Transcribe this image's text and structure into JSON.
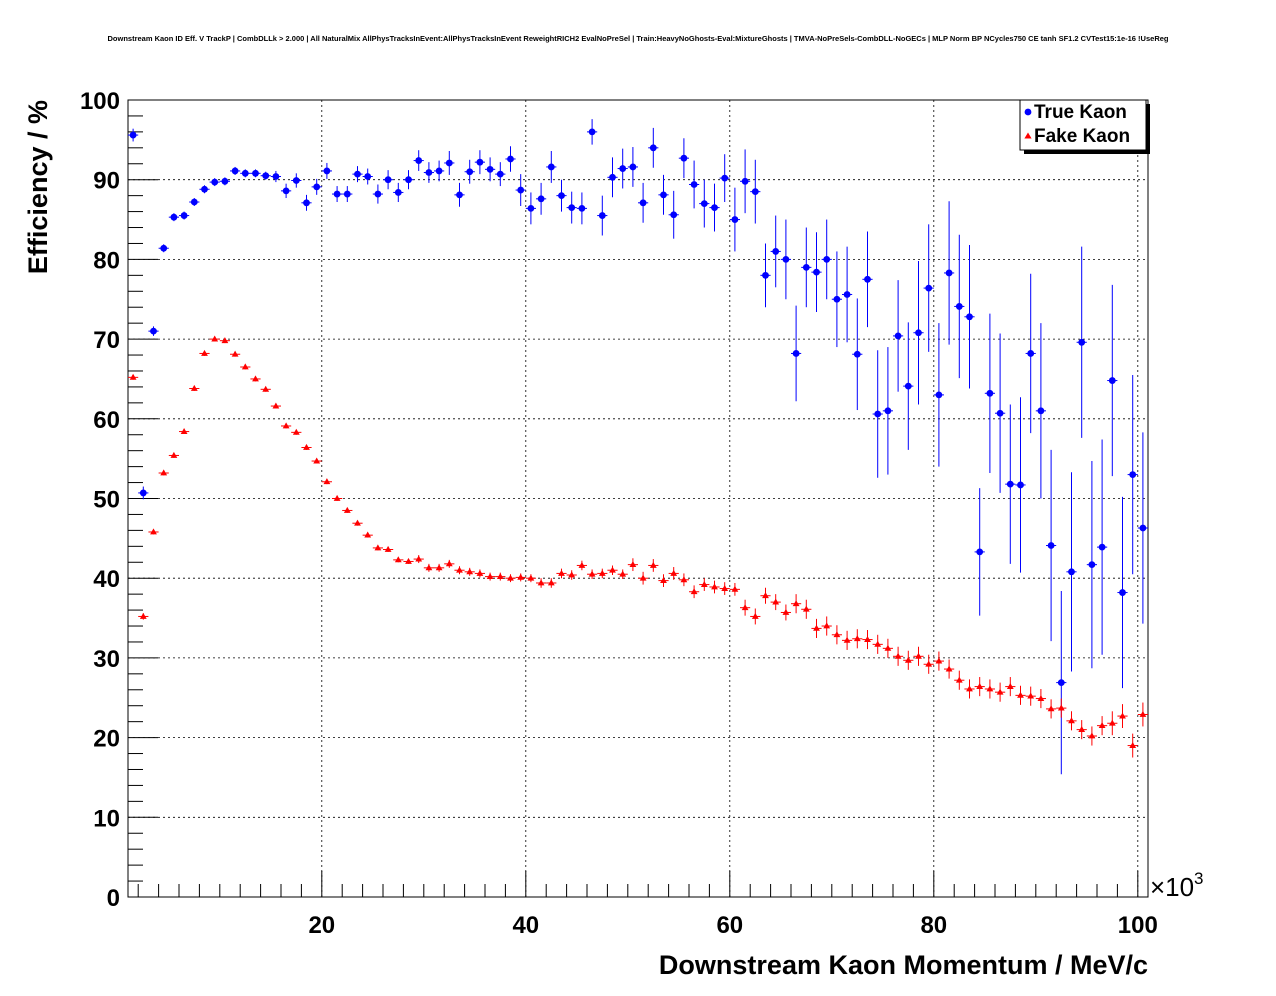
{
  "chart_data": {
    "type": "scatter",
    "title": "Downstream Kaon ID Eff. V TrackP | CombDLLk > 2.000 | All NaturalMix AllPhysTracksInEvent:AllPhysTracksInEvent ReweightRICH2 EvalNoPreSel | Train:HeavyNoGhosts-Eval:MixtureGhosts | TMVA-NoPreSels-CombDLL-NoGECs | MLP Norm BP NCycles750 CE tanh SF1.2 CVTest15:1e-16 !UseReg",
    "xlabel": "Downstream Kaon Momentum / MeV/c",
    "ylabel": "Efficiency / %",
    "x_multiplier": "×10",
    "x_multiplier_exp": "3",
    "xlim": [
      1,
      101
    ],
    "ylim": [
      0,
      100
    ],
    "xticks": [
      "20",
      "40",
      "60",
      "80",
      "100"
    ],
    "xtick_values": [
      20,
      40,
      60,
      80,
      100
    ],
    "yticks": [
      "0",
      "10",
      "20",
      "30",
      "40",
      "50",
      "60",
      "70",
      "80",
      "90",
      "100"
    ],
    "ytick_values": [
      0,
      10,
      20,
      30,
      40,
      50,
      60,
      70,
      80,
      90,
      100
    ],
    "grid": true,
    "legend_position": "top-right",
    "colors": {
      "true_kaon": "#0000ff",
      "fake_kaon": "#ff0000",
      "axis": "#000000",
      "grid": "#000000"
    },
    "x": [
      1.5,
      2.5,
      3.5,
      4.5,
      5.5,
      6.5,
      7.5,
      8.5,
      9.5,
      10.5,
      11.5,
      12.5,
      13.5,
      14.5,
      15.5,
      16.5,
      17.5,
      18.5,
      19.5,
      20.5,
      21.5,
      22.5,
      23.5,
      24.5,
      25.5,
      26.5,
      27.5,
      28.5,
      29.5,
      30.5,
      31.5,
      32.5,
      33.5,
      34.5,
      35.5,
      36.5,
      37.5,
      38.5,
      39.5,
      40.5,
      41.5,
      42.5,
      43.5,
      44.5,
      45.5,
      46.5,
      47.5,
      48.5,
      49.5,
      50.5,
      51.5,
      52.5,
      53.5,
      54.5,
      55.5,
      56.5,
      57.5,
      58.5,
      59.5,
      60.5,
      61.5,
      62.5,
      63.5,
      64.5,
      65.5,
      66.5,
      67.5,
      68.5,
      69.5,
      70.5,
      71.5,
      72.5,
      73.5,
      74.5,
      75.5,
      76.5,
      77.5,
      78.5,
      79.5,
      80.5,
      81.5,
      82.5,
      83.5,
      84.5,
      85.5,
      86.5,
      87.5,
      88.5,
      89.5,
      90.5,
      91.5,
      92.5,
      93.5,
      94.5,
      95.5,
      96.5,
      97.5,
      98.5,
      99.5,
      100.5
    ],
    "series": [
      {
        "name": "True Kaon",
        "marker": "circle",
        "values": [
          95.6,
          50.7,
          71.0,
          81.4,
          85.3,
          85.5,
          87.2,
          88.8,
          89.7,
          89.8,
          91.1,
          90.8,
          90.8,
          90.5,
          90.4,
          88.6,
          89.9,
          87.1,
          89.1,
          91.1,
          88.2,
          88.2,
          90.7,
          90.4,
          88.2,
          90.0,
          88.4,
          90.0,
          92.4,
          90.9,
          91.1,
          92.1,
          88.1,
          91.0,
          92.2,
          91.3,
          90.7,
          92.6,
          88.7,
          86.4,
          87.6,
          91.6,
          88.0,
          86.5,
          86.4,
          96.0,
          85.5,
          90.3,
          91.4,
          91.6,
          87.1,
          94.0,
          88.1,
          85.6,
          92.7,
          89.4,
          87.0,
          86.5,
          90.2,
          85.0,
          89.8,
          88.5,
          78.0,
          81.0,
          80.0,
          68.2,
          79.0,
          78.4,
          80.0,
          75.0,
          75.6,
          68.1,
          77.5,
          60.6,
          61.0,
          70.4,
          64.1,
          70.8,
          76.4,
          63.0,
          78.3,
          74.1,
          72.8,
          43.3,
          63.2,
          60.7,
          51.8,
          51.7,
          68.2,
          61.0,
          44.1,
          26.9,
          40.8,
          69.6,
          41.7,
          43.9,
          64.8,
          38.2,
          53.0,
          46.3
        ],
        "errors": [
          0.8,
          0.8,
          0.6,
          0.5,
          0.5,
          0.5,
          0.5,
          0.5,
          0.5,
          0.5,
          0.5,
          0.5,
          0.5,
          0.5,
          0.7,
          0.9,
          0.9,
          1.0,
          1.0,
          1.0,
          1.0,
          1.0,
          1.0,
          1.0,
          1.2,
          1.2,
          1.2,
          1.2,
          1.3,
          1.3,
          1.3,
          1.5,
          1.5,
          1.5,
          1.5,
          1.5,
          1.5,
          1.6,
          2.0,
          2.0,
          2.0,
          2.0,
          2.0,
          2.0,
          2.0,
          1.6,
          2.5,
          2.5,
          2.5,
          2.5,
          2.5,
          2.5,
          2.5,
          3.0,
          2.5,
          3.0,
          3.0,
          3.0,
          3.0,
          4.0,
          4.0,
          4.0,
          4.0,
          4.5,
          5.0,
          6.0,
          5.0,
          5.0,
          5.0,
          6.0,
          6.0,
          7.0,
          6.0,
          8.0,
          8.0,
          7.0,
          8.0,
          9.0,
          8.0,
          9.0,
          9.0,
          9.0,
          9.0,
          8.0,
          10.0,
          10.0,
          10.0,
          11.0,
          10.0,
          11.0,
          12.0,
          11.5,
          12.5,
          12.0,
          13.0,
          13.5,
          12.0,
          12.0,
          12.5,
          12.0
        ]
      },
      {
        "name": "Fake Kaon",
        "marker": "triangle",
        "values": [
          65.2,
          35.2,
          45.8,
          53.2,
          55.4,
          58.4,
          63.8,
          68.2,
          70.0,
          69.8,
          68.1,
          66.5,
          65.0,
          63.7,
          61.6,
          59.1,
          58.3,
          56.4,
          54.7,
          52.1,
          50.0,
          48.5,
          46.9,
          45.4,
          43.8,
          43.6,
          42.3,
          42.1,
          42.4,
          41.3,
          41.3,
          41.8,
          41.0,
          40.8,
          40.6,
          40.2,
          40.2,
          40.0,
          40.1,
          40.0,
          39.4,
          39.4,
          40.6,
          40.4,
          41.6,
          40.5,
          40.6,
          41.0,
          40.5,
          41.7,
          40.0,
          41.6,
          39.7,
          40.6,
          39.8,
          38.3,
          39.2,
          38.9,
          38.7,
          38.6,
          36.3,
          35.2,
          37.8,
          37.0,
          35.7,
          36.8,
          36.1,
          33.7,
          34.0,
          32.9,
          32.2,
          32.4,
          32.3,
          31.7,
          31.2,
          30.2,
          29.7,
          30.2,
          29.2,
          29.6,
          28.6,
          27.2,
          26.1,
          26.4,
          26.1,
          25.7,
          26.4,
          25.3,
          25.2,
          24.9,
          23.6,
          23.7,
          22.1,
          21.0,
          20.2,
          21.5,
          21.8,
          22.7,
          19.0,
          22.9
        ],
        "errors": [
          0.3,
          0.4,
          0.3,
          0.3,
          0.3,
          0.3,
          0.3,
          0.3,
          0.3,
          0.3,
          0.3,
          0.3,
          0.3,
          0.3,
          0.3,
          0.3,
          0.3,
          0.3,
          0.3,
          0.3,
          0.3,
          0.3,
          0.3,
          0.3,
          0.3,
          0.3,
          0.3,
          0.3,
          0.5,
          0.5,
          0.5,
          0.5,
          0.5,
          0.5,
          0.5,
          0.5,
          0.5,
          0.5,
          0.5,
          0.5,
          0.6,
          0.6,
          0.6,
          0.6,
          0.6,
          0.6,
          0.6,
          0.6,
          0.6,
          0.8,
          0.8,
          0.8,
          0.8,
          0.8,
          0.8,
          0.8,
          0.8,
          0.8,
          0.8,
          0.8,
          1.0,
          1.0,
          1.0,
          1.0,
          1.0,
          1.2,
          1.2,
          1.2,
          1.2,
          1.2,
          1.2,
          1.2,
          1.2,
          1.2,
          1.2,
          1.2,
          1.2,
          1.2,
          1.2,
          1.2,
          1.2,
          1.2,
          1.2,
          1.2,
          1.2,
          1.2,
          1.2,
          1.2,
          1.2,
          1.2,
          1.2,
          1.2,
          1.2,
          1.2,
          1.2,
          1.2,
          1.5,
          1.5,
          1.5,
          1.5
        ]
      }
    ]
  }
}
